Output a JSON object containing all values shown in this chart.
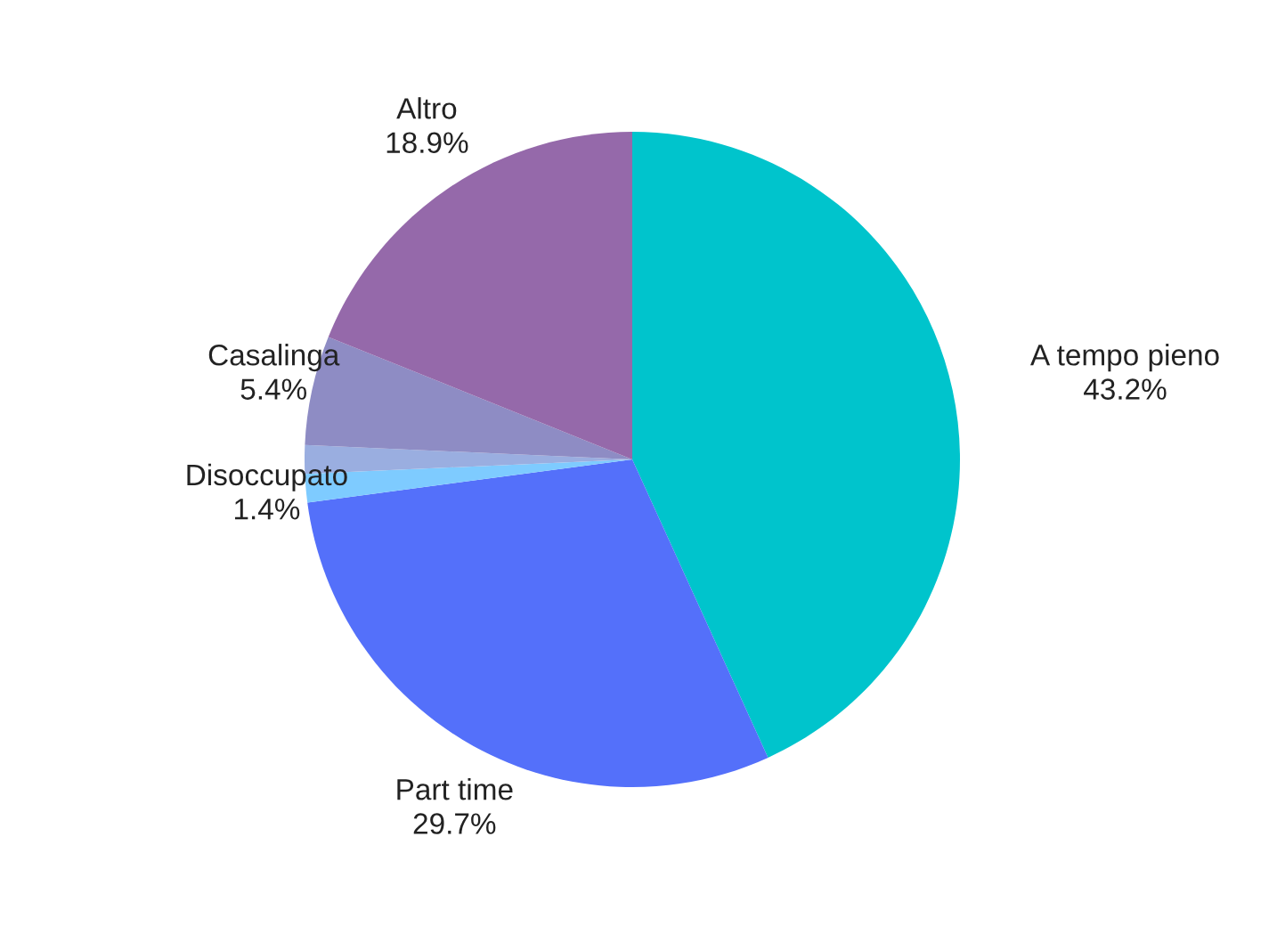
{
  "chart_data": {
    "type": "pie",
    "categories": [
      "A tempo pieno",
      "Part time",
      "Disoccupato",
      null,
      "Casalinga",
      "Altro"
    ],
    "values": [
      43.2,
      29.7,
      1.4,
      1.4,
      5.4,
      18.9
    ],
    "colors": [
      "#00c4cc",
      "#5470fa",
      "#7ecbff",
      "#9aaee0",
      "#8e8cc4",
      "#9569aa"
    ],
    "value_labels": [
      "43.2%",
      "29.7%",
      "1.4%",
      null,
      "5.4%",
      "18.9%"
    ]
  }
}
